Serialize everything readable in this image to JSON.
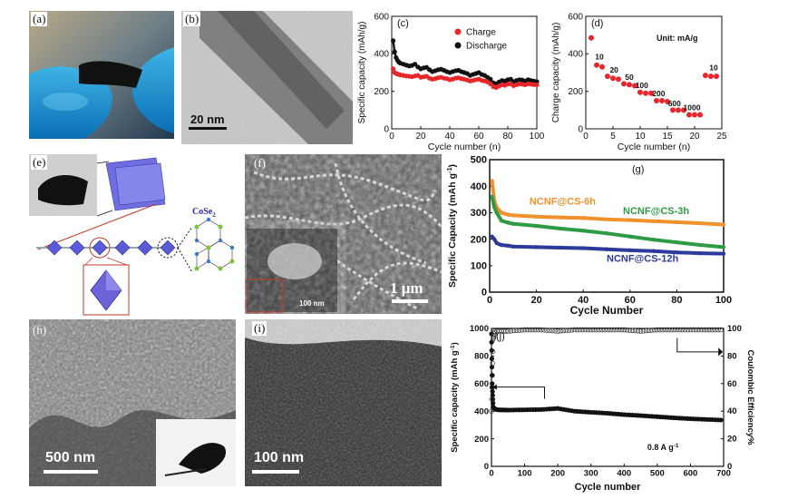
{
  "panel_labels": {
    "a": "(a)",
    "b": "(b)",
    "c": "(c)",
    "d": "(d)",
    "e": "(e)",
    "f": "(f)",
    "g": "(g)",
    "h": "(h)",
    "i": "(i)",
    "j": "(j)"
  },
  "scale_bars": {
    "b": "20 nm",
    "f_main": "1 μm",
    "f_inset": "100 nm",
    "h": "500 nm",
    "i": "100 nm"
  },
  "e_label": "CoSe",
  "e_label_sub": "2",
  "chart_data": [
    {
      "id": "c",
      "type": "scatter",
      "ylabel": "Specific capacity (mAh/g)",
      "xlabel": "Cycle number (n)",
      "xlim": [
        0,
        100
      ],
      "ylim": [
        0,
        600
      ],
      "xticks": [
        0,
        20,
        40,
        60,
        80,
        100
      ],
      "yticks": [
        0,
        200,
        400,
        600
      ],
      "legend_position": "top-right",
      "series": [
        {
          "name": "Charge",
          "color": "#e8262a",
          "x": [
            1,
            2,
            3,
            4,
            5,
            6,
            8,
            10,
            12,
            14,
            16,
            18,
            20,
            22,
            24,
            26,
            28,
            30,
            32,
            34,
            36,
            38,
            40,
            42,
            44,
            46,
            48,
            50,
            52,
            54,
            56,
            58,
            60,
            62,
            64,
            66,
            68,
            70,
            72,
            74,
            76,
            78,
            80,
            82,
            84,
            86,
            88,
            90,
            92,
            94,
            96,
            98,
            100
          ],
          "y": [
            320,
            300,
            295,
            292,
            290,
            288,
            285,
            282,
            280,
            278,
            282,
            285,
            275,
            278,
            280,
            270,
            265,
            268,
            272,
            275,
            270,
            268,
            262,
            265,
            270,
            272,
            268,
            265,
            260,
            255,
            258,
            262,
            265,
            258,
            255,
            250,
            240,
            225,
            220,
            228,
            235,
            232,
            238,
            240,
            230,
            235,
            240,
            238,
            235,
            240,
            238,
            236,
            235
          ]
        },
        {
          "name": "Discharge",
          "color": "#111111",
          "x": [
            1,
            2,
            3,
            4,
            5,
            6,
            8,
            10,
            12,
            14,
            16,
            18,
            20,
            22,
            24,
            26,
            28,
            30,
            32,
            34,
            36,
            38,
            40,
            42,
            44,
            46,
            48,
            50,
            52,
            54,
            56,
            58,
            60,
            62,
            64,
            66,
            68,
            70,
            72,
            74,
            76,
            78,
            80,
            82,
            84,
            86,
            88,
            90,
            92,
            94,
            96,
            98,
            100
          ],
          "y": [
            470,
            410,
            380,
            365,
            355,
            350,
            345,
            340,
            335,
            338,
            345,
            330,
            320,
            325,
            328,
            315,
            305,
            310,
            315,
            318,
            312,
            305,
            300,
            305,
            310,
            312,
            305,
            300,
            295,
            285,
            290,
            295,
            300,
            290,
            285,
            275,
            265,
            245,
            240,
            250,
            258,
            255,
            262,
            265,
            252,
            258,
            262,
            260,
            255,
            262,
            258,
            255,
            252
          ]
        }
      ]
    },
    {
      "id": "d",
      "type": "scatter",
      "ylabel": "Charge capacity (mAh/g)",
      "xlabel": "Cycle number (n)",
      "xlim": [
        0,
        25
      ],
      "ylim": [
        0,
        600
      ],
      "xticks": [
        0,
        5,
        10,
        15,
        20,
        25
      ],
      "yticks": [
        0,
        200,
        400,
        600
      ],
      "unit_note": "Unit: mA/g",
      "points_x": [
        1,
        2,
        3,
        4,
        5,
        6,
        7,
        8,
        9,
        10,
        11,
        12,
        13,
        14,
        15,
        16,
        17,
        18,
        19,
        20,
        21,
        22,
        23,
        24
      ],
      "points_y": [
        485,
        340,
        330,
        280,
        270,
        265,
        240,
        235,
        230,
        195,
        190,
        190,
        150,
        150,
        145,
        100,
        100,
        100,
        75,
        75,
        75,
        285,
        280,
        280
      ],
      "color": "#e8262a",
      "annotations": [
        {
          "text": "10",
          "x": 2.5,
          "y": 370
        },
        {
          "text": "20",
          "x": 5.2,
          "y": 300
        },
        {
          "text": "50",
          "x": 8,
          "y": 262
        },
        {
          "text": "100",
          "x": 10.3,
          "y": 218
        },
        {
          "text": "200",
          "x": 13.4,
          "y": 175
        },
        {
          "text": "600",
          "x": 16.3,
          "y": 122
        },
        {
          "text": "1000",
          "x": 19.5,
          "y": 100
        },
        {
          "text": "10",
          "x": 23.5,
          "y": 312
        }
      ]
    },
    {
      "id": "g",
      "type": "line",
      "ylabel": "Specific Capacity (mAh g",
      "ylabel_sup": "-1",
      "ylabel_end": ")",
      "xlabel": "Cycle Number",
      "xlim": [
        0,
        100
      ],
      "ylim": [
        0,
        500
      ],
      "xticks": [
        0,
        20,
        40,
        60,
        80,
        100
      ],
      "yticks": [
        0,
        100,
        200,
        300,
        400,
        500
      ],
      "series": [
        {
          "name": "NCNF@CS-6h",
          "color": "#f0922c",
          "x": [
            1,
            2,
            3,
            5,
            8,
            10,
            20,
            30,
            40,
            50,
            60,
            70,
            80,
            90,
            100
          ],
          "y": [
            420,
            345,
            320,
            300,
            292,
            290,
            285,
            282,
            280,
            275,
            272,
            268,
            264,
            260,
            255
          ]
        },
        {
          "name": "NCNF@CS-3h",
          "color": "#2e9a43",
          "x": [
            1,
            2,
            3,
            5,
            8,
            10,
            20,
            30,
            40,
            50,
            60,
            70,
            80,
            90,
            100
          ],
          "y": [
            360,
            320,
            300,
            270,
            262,
            258,
            250,
            240,
            232,
            222,
            210,
            198,
            188,
            178,
            170
          ]
        },
        {
          "name": "NCNF@CS-12h",
          "color": "#2d3a9c",
          "x": [
            1,
            2,
            3,
            5,
            8,
            10,
            20,
            30,
            40,
            50,
            60,
            70,
            80,
            90,
            100
          ],
          "y": [
            210,
            200,
            185,
            178,
            175,
            172,
            170,
            168,
            166,
            162,
            158,
            155,
            150,
            147,
            145
          ]
        }
      ],
      "label_positions": [
        {
          "name": "NCNF@CS-6h",
          "x": 17,
          "y": 330,
          "color": "#f0922c"
        },
        {
          "name": "NCNF@CS-3h",
          "x": 57,
          "y": 295,
          "color": "#2e9a43"
        },
        {
          "name": "NCNF@CS-12h",
          "x": 50,
          "y": 115,
          "color": "#2d3a9c"
        }
      ]
    },
    {
      "id": "j",
      "type": "scatter",
      "ylabel": "Specific capacity (mAh g",
      "ylabel_sup": "-1",
      "ylabel_end": ")",
      "ylabel_right": "Coulombic Efficiency%",
      "xlabel": "Cycle number",
      "xlim": [
        0,
        700
      ],
      "ylim": [
        0,
        1000
      ],
      "ylim_right": [
        0,
        100
      ],
      "xticks": [
        0,
        100,
        200,
        300,
        400,
        500,
        600,
        700
      ],
      "yticks": [
        0,
        200,
        400,
        600,
        800,
        1000
      ],
      "yticks_right": [
        0,
        20,
        40,
        60,
        80,
        100
      ],
      "note": "0.8 A g",
      "note_sup": "-1",
      "capacity": {
        "x": [
          0,
          2,
          5,
          10,
          20,
          50,
          100,
          150,
          200,
          250,
          300,
          350,
          400,
          450,
          500,
          550,
          600,
          650,
          700
        ],
        "y": [
          960,
          600,
          430,
          415,
          410,
          408,
          410,
          412,
          420,
          400,
          392,
          385,
          375,
          368,
          360,
          352,
          345,
          340,
          335
        ]
      },
      "efficiency": {
        "x": [
          0,
          5,
          10,
          50,
          100,
          150,
          200,
          250,
          300,
          350,
          400,
          450,
          500,
          550,
          600,
          650,
          700
        ],
        "y": [
          40,
          92,
          98,
          98,
          99,
          99,
          98,
          99,
          99,
          99,
          99,
          98,
          99,
          99,
          99,
          99,
          99
        ]
      }
    }
  ]
}
